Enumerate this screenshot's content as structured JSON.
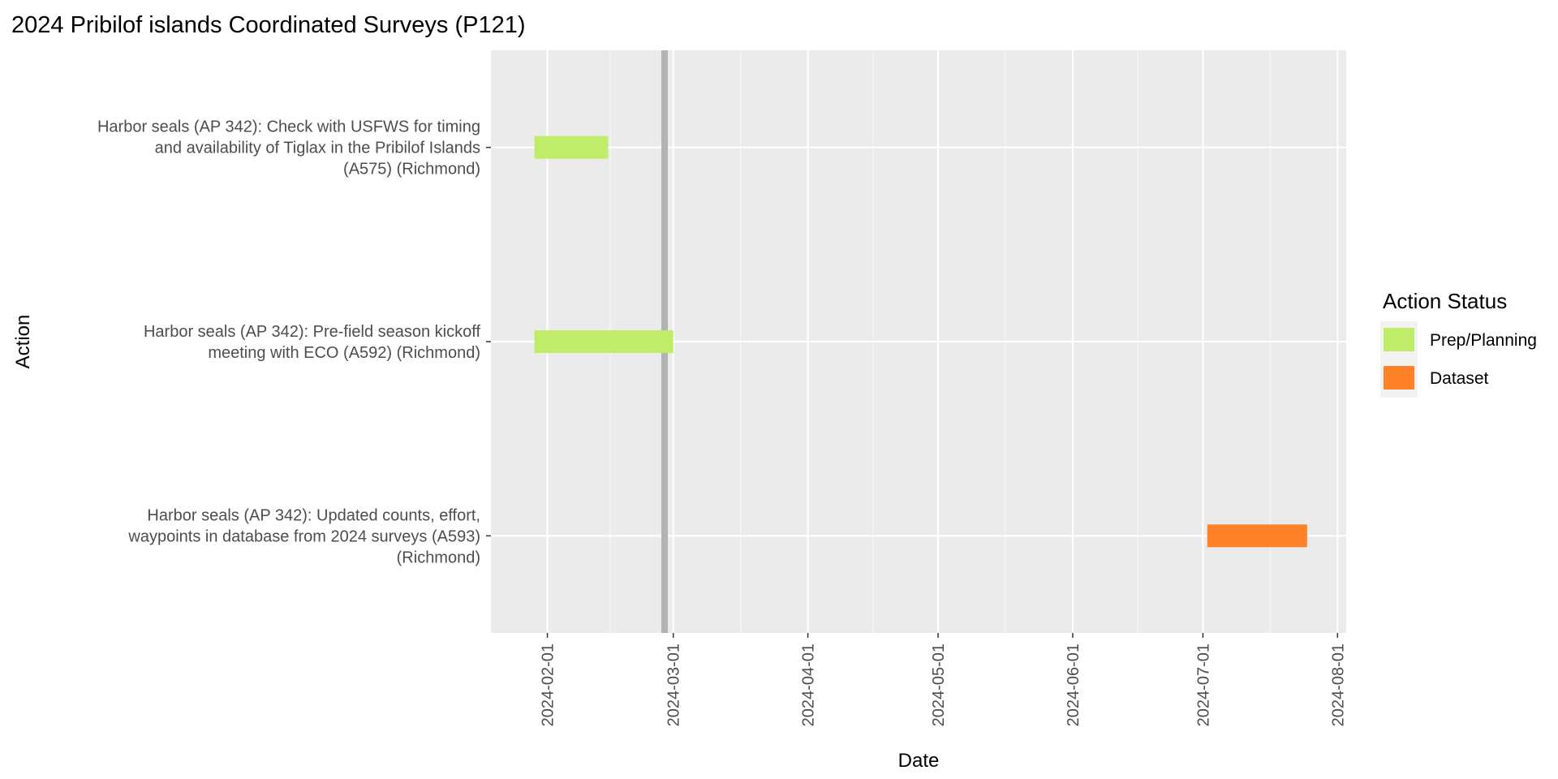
{
  "chart_data": {
    "type": "gantt",
    "title": "2024 Pribilof islands Coordinated Surveys (P121)",
    "xlabel": "Date",
    "ylabel": "Action",
    "x_ticks": [
      "2024-02-01",
      "2024-03-01",
      "2024-04-01",
      "2024-05-01",
      "2024-06-01",
      "2024-07-01",
      "2024-08-01"
    ],
    "xlim": [
      "2024-01-19",
      "2024-08-03"
    ],
    "current_date_marker": "2024-02-28",
    "grid": true,
    "legend": {
      "title": "Action Status",
      "placement": "right",
      "entries": [
        {
          "label": "Prep/Planning",
          "color": "#bfed6a"
        },
        {
          "label": "Dataset",
          "color": "#ff8228"
        }
      ]
    },
    "tasks": [
      {
        "lines": [
          "Harbor seals (AP 342): Check with USFWS for timing",
          "and availability of Tiglax in the Pribilof Islands",
          "(A575) (Richmond)"
        ],
        "start": "2024-01-29",
        "end": "2024-02-15",
        "status": "Prep/Planning"
      },
      {
        "lines": [
          "Harbor seals (AP 342): Pre-field season kickoff",
          "meeting with ECO (A592) (Richmond)"
        ],
        "start": "2024-01-29",
        "end": "2024-03-01",
        "status": "Prep/Planning"
      },
      {
        "lines": [
          "Harbor seals (AP 342): Updated counts, effort,",
          "waypoints in database from 2024 surveys (A593)",
          "(Richmond)"
        ],
        "start": "2024-07-02",
        "end": "2024-07-25",
        "status": "Dataset"
      }
    ]
  }
}
